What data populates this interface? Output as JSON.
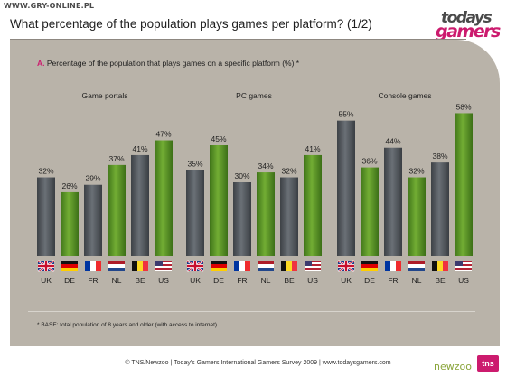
{
  "watermark": "WWW.GRY-ONLINE.PL",
  "title": "What percentage of the population plays games per platform? (1/2)",
  "logo": {
    "line1": "todays",
    "line2": "gamers"
  },
  "subtitle": {
    "marker": "A.",
    "text": "Percentage of the population that plays games on a specific platform (%) *"
  },
  "base_note": "* BASE: total population of 8 years and older (with access to internet).",
  "footer": "© TNS/Newzoo | Today's Gamers International Gamers Survey 2009 | www.todaysgamers.com",
  "footer_logos": {
    "left": "newzoo",
    "right": "tns"
  },
  "colors": {
    "grey_bar": "#4c5156",
    "green_bar": "#5a9424",
    "panel": "#b9b3a9",
    "accent": "#cc1b6e"
  },
  "chart_data": {
    "type": "bar",
    "ylim": [
      0,
      60
    ],
    "grid": false,
    "categories": [
      "UK",
      "DE",
      "FR",
      "NL",
      "BE",
      "US"
    ],
    "category_flags": [
      "uk-flag-icon",
      "de-flag-icon",
      "fr-flag-icon",
      "nl-flag-icon",
      "be-flag-icon",
      "us-flag-icon"
    ],
    "bar_colors": [
      "grey",
      "green",
      "grey",
      "green",
      "grey",
      "green"
    ],
    "groups": [
      {
        "name": "Game portals",
        "values": [
          32,
          26,
          29,
          37,
          41,
          47
        ],
        "labels": [
          "32%",
          "26%",
          "29%",
          "37%",
          "41%",
          "47%"
        ]
      },
      {
        "name": "PC games",
        "values": [
          35,
          45,
          30,
          34,
          32,
          41
        ],
        "labels": [
          "35%",
          "45%",
          "30%",
          "34%",
          "32%",
          "41%"
        ]
      },
      {
        "name": "Console games",
        "values": [
          55,
          36,
          44,
          32,
          38,
          58
        ],
        "labels": [
          "55%",
          "36%",
          "44%",
          "32%",
          "38%",
          "58%"
        ]
      }
    ]
  }
}
